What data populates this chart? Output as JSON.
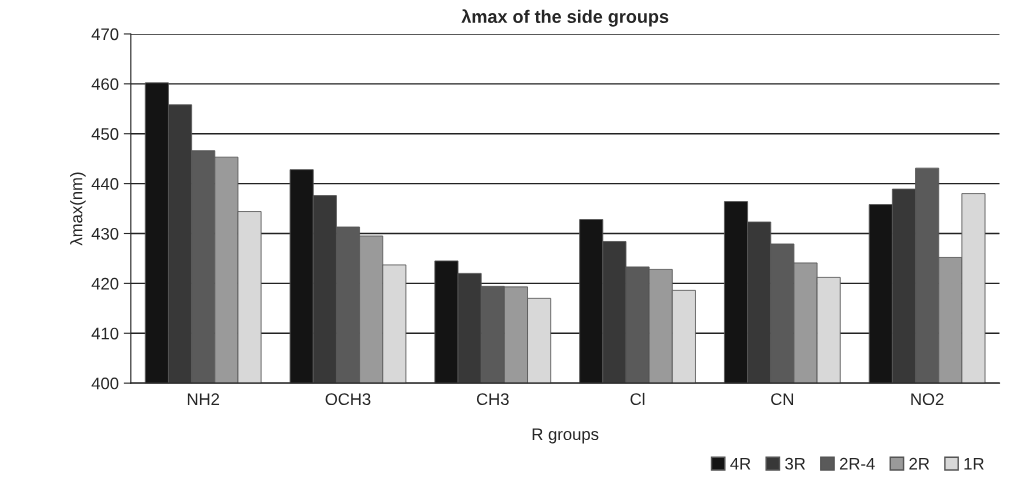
{
  "chart_data": {
    "type": "bar",
    "title": "λmax of the side groups",
    "xlabel": "R groups",
    "ylabel": "λmax(nm)",
    "categories": [
      "NH2",
      "OCH3",
      "CH3",
      "Cl",
      "CN",
      "NO2"
    ],
    "series": [
      {
        "name": "4R",
        "color": "#141414",
        "values": [
          460.2,
          442.8,
          424.5,
          432.8,
          436.4,
          435.8
        ]
      },
      {
        "name": "3R",
        "color": "#383838",
        "values": [
          455.8,
          437.6,
          422.0,
          428.4,
          432.3,
          438.9
        ]
      },
      {
        "name": "2R-4",
        "color": "#5a5a5a",
        "values": [
          446.6,
          431.3,
          419.4,
          423.3,
          427.9,
          443.1
        ]
      },
      {
        "name": "2R",
        "color": "#9a9a9a",
        "values": [
          445.3,
          429.5,
          419.3,
          422.8,
          424.1,
          425.2
        ]
      },
      {
        "name": "1R",
        "color": "#d8d8d8",
        "values": [
          434.4,
          423.7,
          417.0,
          418.6,
          421.2,
          438.0
        ]
      }
    ],
    "ylim": [
      400,
      470
    ],
    "yticks": [
      400,
      410,
      420,
      430,
      440,
      450,
      460,
      470
    ],
    "grid": "y",
    "legend": "bottom right"
  }
}
